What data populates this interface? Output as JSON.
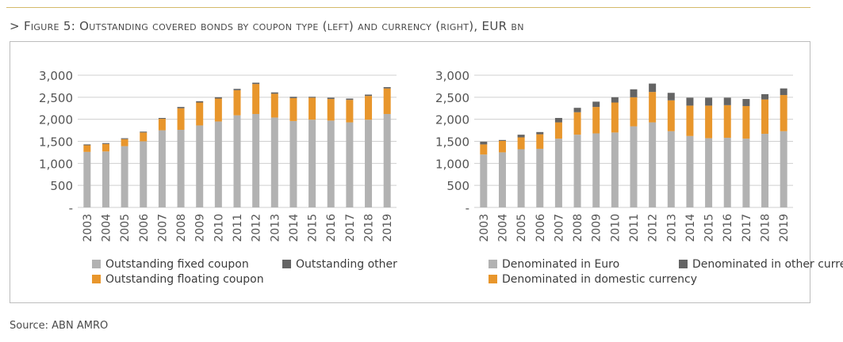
{
  "figure": {
    "prefix": ">",
    "title": "Figure 5: Outstanding covered bonds by coupon type (left) and currency (right), EUR bn"
  },
  "source": "Source: ABN AMRO",
  "colors": {
    "grey": "#b2b2b2",
    "orange": "#e8962c",
    "dark": "#646464",
    "gridline": "#cfcfcf",
    "rule": "#d4b96a"
  },
  "chart_data": [
    {
      "type": "bar",
      "stacked": true,
      "title": "",
      "xlabel": "",
      "ylabel": "",
      "ylim": [
        0,
        3000
      ],
      "yticks": [
        0,
        500,
        1000,
        1500,
        2000,
        2500,
        3000
      ],
      "ytick_labels": [
        "-",
        "500",
        "1,000",
        "1,500",
        "2,000",
        "2,500",
        "3,000"
      ],
      "grid": true,
      "legend_position": "bottom",
      "categories": [
        "2003",
        "2004",
        "2005",
        "2006",
        "2007",
        "2008",
        "2009",
        "2010",
        "2011",
        "2012",
        "2013",
        "2014",
        "2015",
        "2016",
        "2017",
        "2018",
        "2019"
      ],
      "series": [
        {
          "name": "Outstanding fixed coupon",
          "color": "grey",
          "values": [
            1260,
            1270,
            1390,
            1500,
            1750,
            1760,
            1860,
            1950,
            2090,
            2120,
            2040,
            1960,
            1990,
            1970,
            1930,
            1990,
            2120
          ]
        },
        {
          "name": "Outstanding floating coupon",
          "color": "orange",
          "values": [
            150,
            170,
            160,
            200,
            260,
            490,
            520,
            520,
            570,
            680,
            540,
            520,
            500,
            490,
            510,
            540,
            580
          ]
        },
        {
          "name": "Outstanding other",
          "color": "dark",
          "values": [
            20,
            20,
            20,
            20,
            20,
            30,
            30,
            30,
            30,
            30,
            30,
            30,
            20,
            30,
            30,
            30,
            30
          ]
        }
      ],
      "legend_order": [
        0,
        2,
        1
      ]
    },
    {
      "type": "bar",
      "stacked": true,
      "title": "",
      "xlabel": "",
      "ylabel": "",
      "ylim": [
        0,
        3000
      ],
      "yticks": [
        0,
        500,
        1000,
        1500,
        2000,
        2500,
        3000
      ],
      "ytick_labels": [
        "-",
        "500",
        "1,000",
        "1,500",
        "2,000",
        "2,500",
        "3,000"
      ],
      "grid": true,
      "legend_position": "bottom",
      "categories": [
        "2003",
        "2004",
        "2005",
        "2006",
        "2007",
        "2008",
        "2009",
        "2010",
        "2011",
        "2012",
        "2013",
        "2014",
        "2015",
        "2016",
        "2017",
        "2018",
        "2019"
      ],
      "series": [
        {
          "name": "Denominated in Euro",
          "color": "grey",
          "values": [
            1200,
            1250,
            1320,
            1330,
            1560,
            1650,
            1680,
            1700,
            1840,
            1930,
            1730,
            1620,
            1570,
            1580,
            1560,
            1670,
            1730
          ]
        },
        {
          "name": "Denominated in domestic currency",
          "color": "orange",
          "values": [
            230,
            260,
            270,
            330,
            370,
            510,
            600,
            680,
            660,
            690,
            700,
            690,
            740,
            740,
            740,
            780,
            820
          ]
        },
        {
          "name": "Denominated in other currencies",
          "color": "dark",
          "values": [
            60,
            20,
            60,
            50,
            100,
            100,
            120,
            120,
            180,
            190,
            170,
            180,
            180,
            170,
            160,
            120,
            150
          ]
        }
      ],
      "legend_order": [
        0,
        2,
        1
      ]
    }
  ]
}
